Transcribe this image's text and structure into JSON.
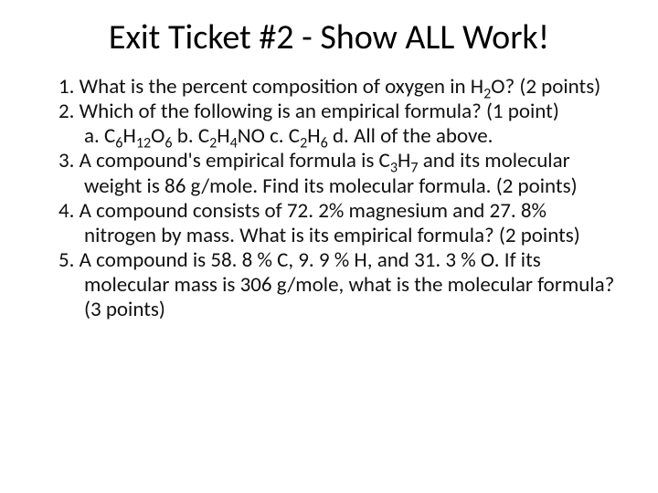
{
  "title": "Exit Ticket #2 - Show ALL Work!",
  "q1_a": "1. What is the percent composition of oxygen in H",
  "q1_sub1": "2",
  "q1_b": "O? (2 points)",
  "q2_a": "2. Which of the following is an empirical formula? (1 point)",
  "q2c_a": "a. C",
  "q2c_s1": "6",
  "q2c_b": "H",
  "q2c_s2": "12",
  "q2c_c": "O",
  "q2c_s3": "6",
  "q2c_d": "   b. C",
  "q2c_s4": "2",
  "q2c_e": "H",
  "q2c_s5": "4",
  "q2c_f": "NO     c. C",
  "q2c_s6": "2",
  "q2c_g": "H",
  "q2c_s7": "6",
  "q2c_h": "   d. All of the above.",
  "q3_a": "3. A compound's empirical formula is C",
  "q3_s1": "3",
  "q3_b": "H",
  "q3_s2": "7",
  "q3_c": " and its molecular weight is 86 g/mole. Find its molecular formula. (2 points)",
  "q4": "4. A compound consists of 72. 2% magnesium and 27. 8% nitrogen by mass. What is its empirical formula? (2 points)",
  "q5": "5. A compound is 58. 8 % C, 9. 9 % H, and 31. 3 % O. If its molecular mass is 306 g/mole, what is the molecular formula? (3 points)"
}
